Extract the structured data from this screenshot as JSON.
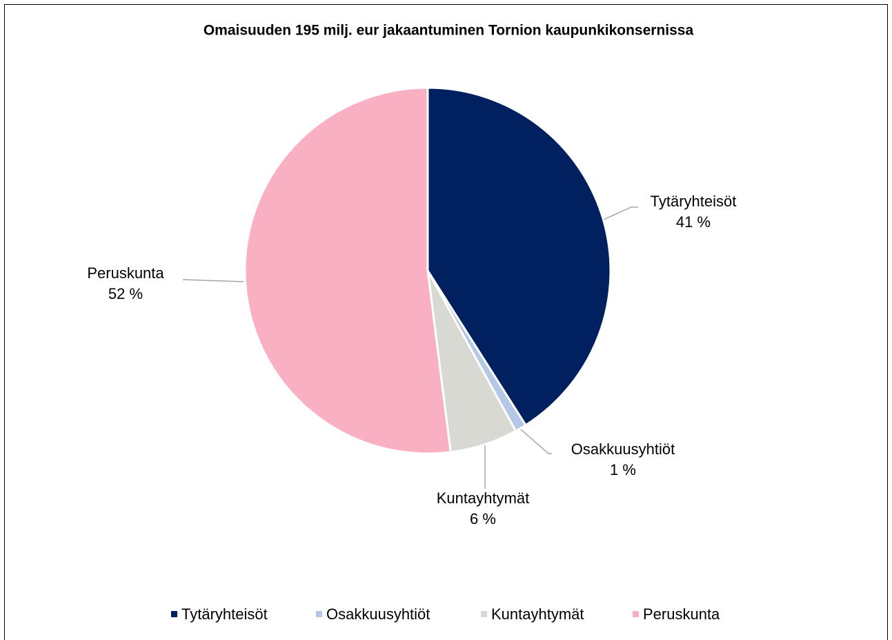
{
  "chart_data": {
    "type": "pie",
    "title": "Omaisuuden 195 milj. eur jakaantuminen Tornion kaupunkikonsernissa",
    "categories": [
      "Tytäryhteisöt",
      "Osakkuusyhtiöt",
      "Kuntayhtymät",
      "Peruskunta"
    ],
    "values": [
      41,
      1,
      6,
      52
    ],
    "value_labels": [
      "41 %",
      "1 %",
      "6 %",
      "52 %"
    ],
    "colors": [
      "#002060",
      "#b4c7e7",
      "#d9d9d4",
      "#f9b0c2"
    ],
    "legend": "bottom"
  }
}
